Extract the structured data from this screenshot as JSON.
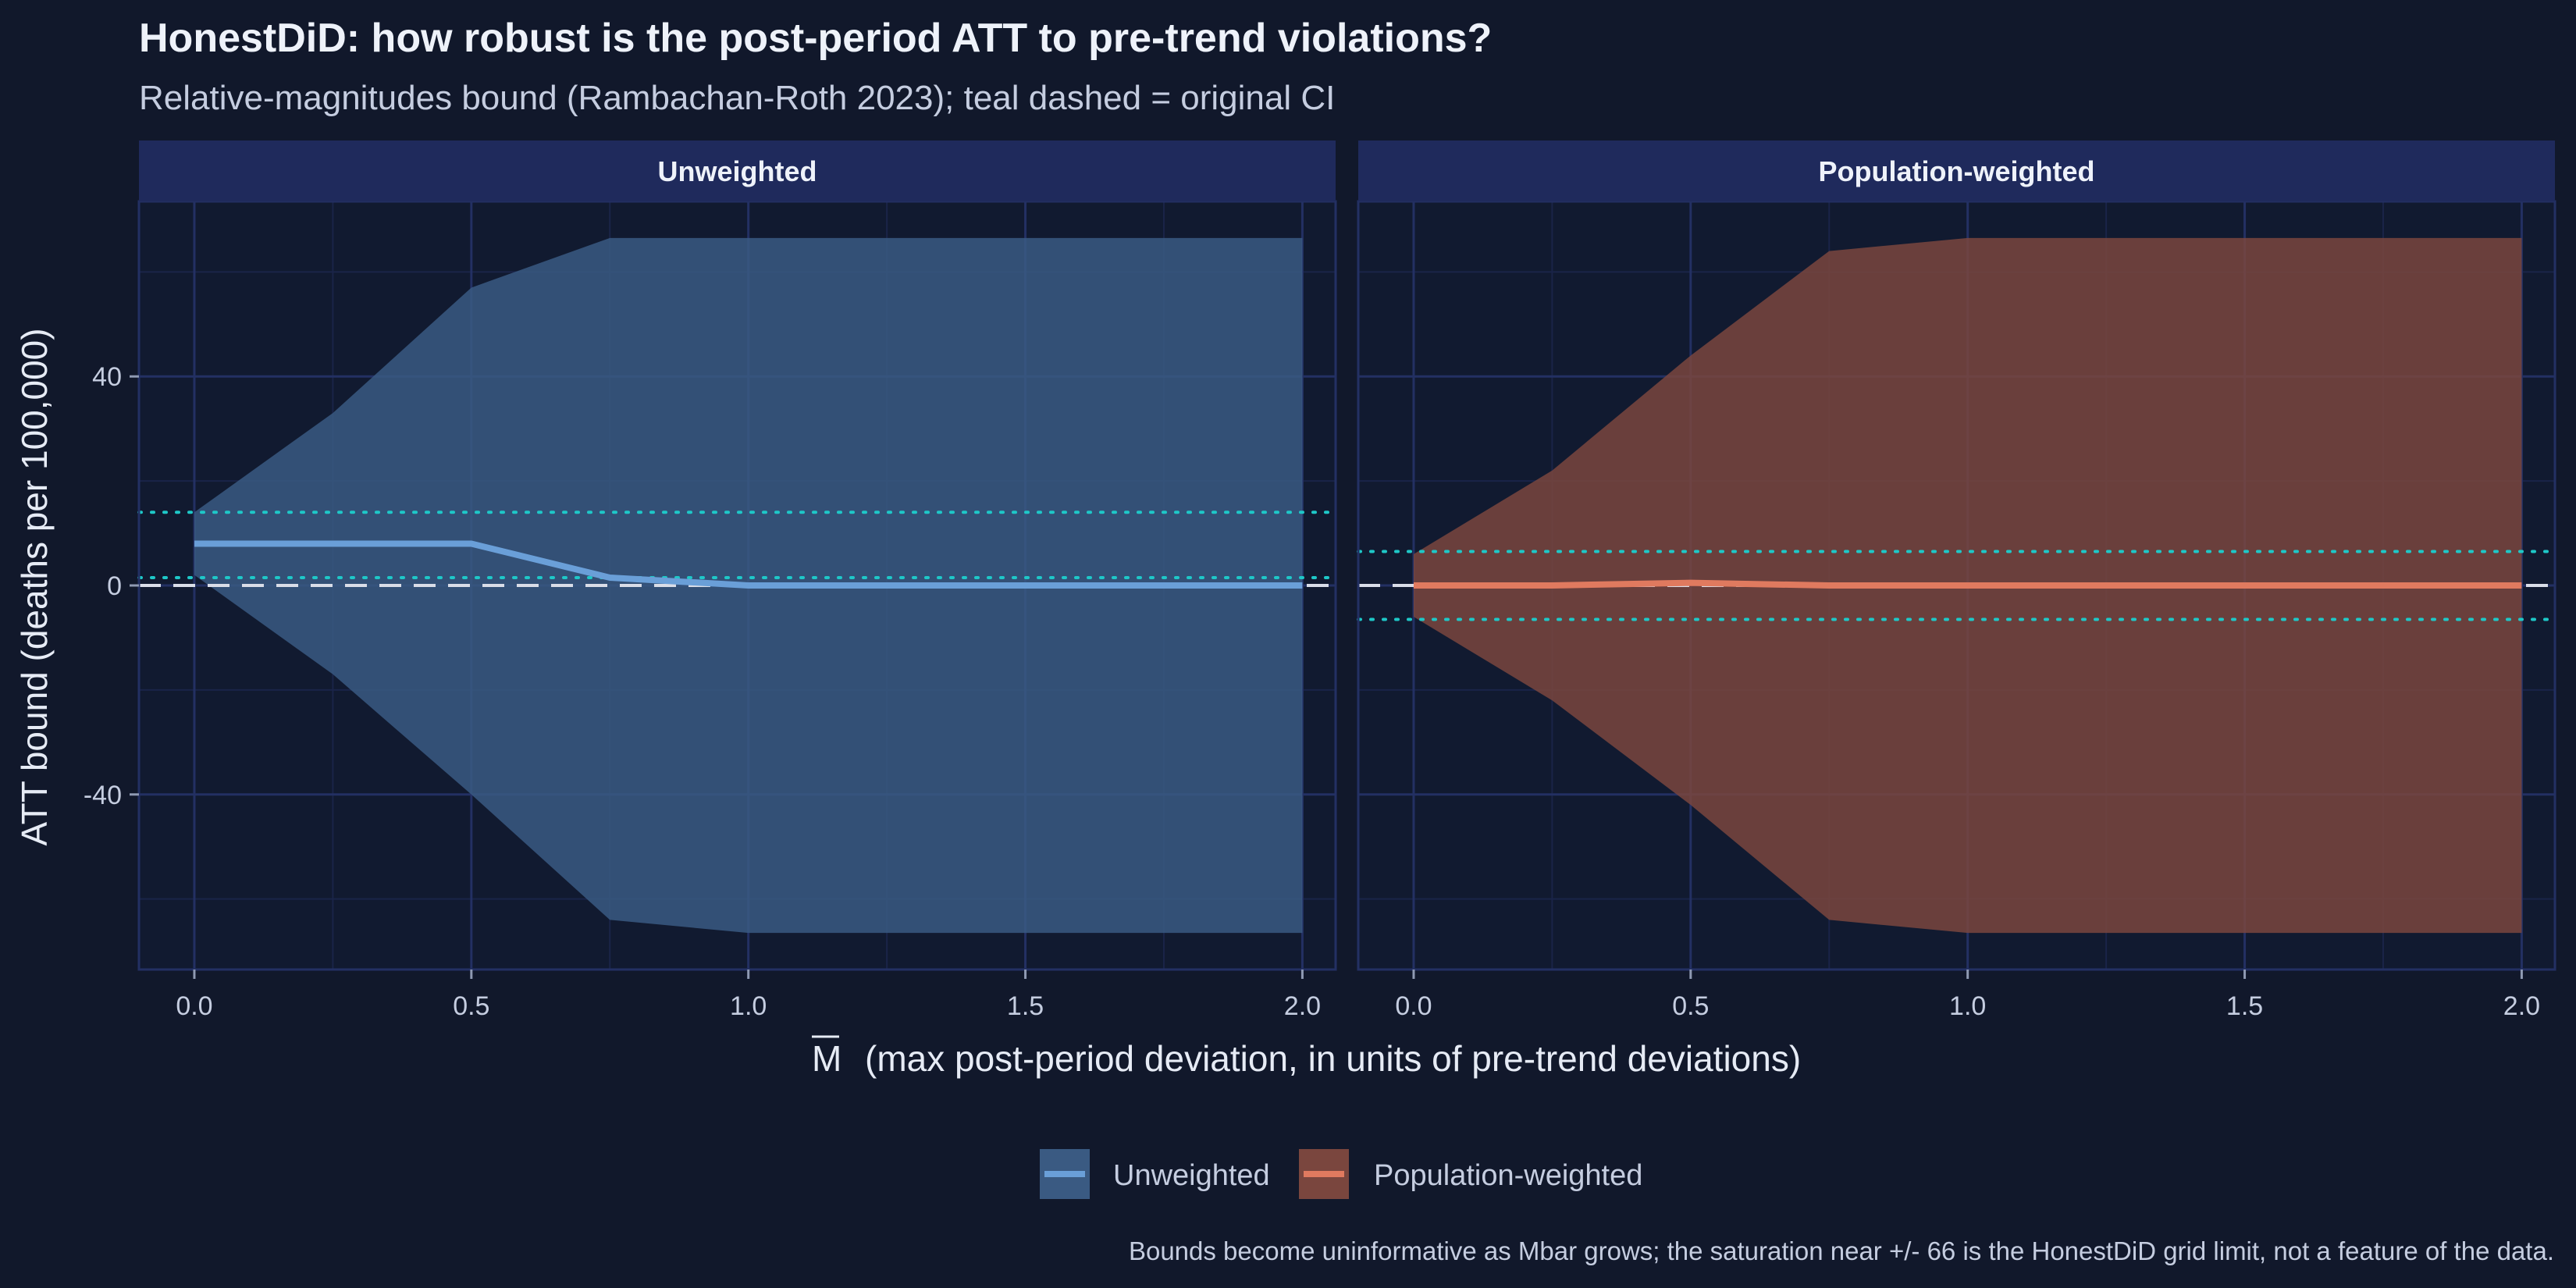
{
  "title": "HonestDiD: how robust is the post-period ATT to pre-trend violations?",
  "subtitle": "Relative-magnitudes bound (Rambachan-Roth 2023); teal dashed = original CI",
  "caption": "Bounds become uninformative as Mbar grows; the saturation near +/- 66 is the HonestDiD grid limit, not a feature of the data.",
  "colors": {
    "background": "#11182b",
    "panel_background": "#111a30",
    "strip_background": "#1f2a5c",
    "grid_major": "#233063",
    "grid_minor": "#1a2448",
    "unweighted": "#6a9fd8",
    "unweighted_fill": "#3a5a82",
    "weighted": "#e07a5f",
    "weighted_fill": "#7a463e",
    "ci": "#1ec8c8",
    "zero_line": "#d9dde8"
  },
  "chart_data": {
    "type": "area",
    "xlabel_symbol": "M",
    "xlabel": "(max post-period deviation, in units of pre-trend deviations)",
    "ylabel": "ATT bound (deaths per 100,000)",
    "xlim": [
      -0.1,
      2.06
    ],
    "ylim": [
      -73.5,
      73.5
    ],
    "x_ticks": [
      0.0,
      0.5,
      1.0,
      1.5,
      2.0
    ],
    "x_tick_labels": [
      "0.0",
      "0.5",
      "1.0",
      "1.5",
      "2.0"
    ],
    "y_ticks": [
      40,
      0,
      -40
    ],
    "y_tick_labels": [
      "40",
      "0",
      "-40"
    ],
    "grid": true,
    "legend_position": "bottom",
    "legend": [
      {
        "name": "Unweighted",
        "color": "#6a9fd8",
        "fill": "#3a5a82"
      },
      {
        "name": "Population-weighted",
        "color": "#e07a5f",
        "fill": "#7a463e"
      }
    ],
    "panels": [
      {
        "name": "Unweighted",
        "series": "Unweighted",
        "x": [
          0,
          0.25,
          0.5,
          0.75,
          1.0,
          1.25,
          1.5,
          1.75,
          2.0
        ],
        "upper": [
          14,
          33,
          57,
          66.5,
          66.5,
          66.5,
          66.5,
          66.5,
          66.5
        ],
        "lower": [
          2,
          -17,
          -40,
          -64,
          -66.5,
          -66.5,
          -66.5,
          -66.5,
          -66.5
        ],
        "estimate": [
          8,
          8,
          8,
          1.5,
          0,
          0,
          0,
          0,
          0
        ],
        "ci": [
          1.5,
          14
        ]
      },
      {
        "name": "Population-weighted",
        "series": "Population-weighted",
        "x": [
          0,
          0.25,
          0.5,
          0.75,
          1.0,
          1.25,
          1.5,
          1.75,
          2.0
        ],
        "upper": [
          6,
          22,
          44,
          64,
          66.5,
          66.5,
          66.5,
          66.5,
          66.5
        ],
        "lower": [
          -6,
          -22,
          -42,
          -64,
          -66.5,
          -66.5,
          -66.5,
          -66.5,
          -66.5
        ],
        "estimate": [
          0,
          0,
          0.5,
          0,
          0,
          0,
          0,
          0,
          0
        ],
        "ci": [
          -6.5,
          6.5
        ]
      }
    ]
  }
}
